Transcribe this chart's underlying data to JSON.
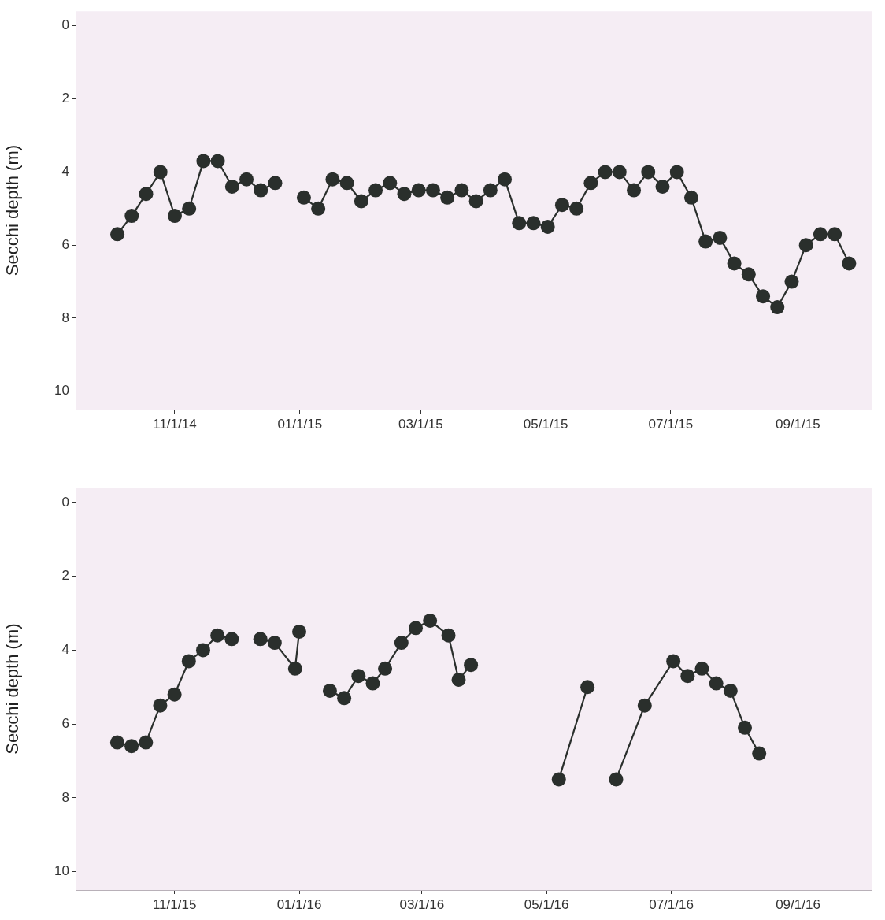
{
  "chart_data": [
    {
      "type": "line",
      "ylabel": "Secchi depth (m)",
      "marker": "circle",
      "legend": false,
      "xlim": [
        "2014-09-14",
        "2015-10-07"
      ],
      "ylim": [
        10.5,
        -0.4
      ],
      "yticks": [
        0,
        2,
        4,
        6,
        8,
        10
      ],
      "xticks": [
        {
          "value": "2014-11-01",
          "label": "11/1/14"
        },
        {
          "value": "2015-01-01",
          "label": "01/1/15"
        },
        {
          "value": "2015-03-01",
          "label": "03/1/15"
        },
        {
          "value": "2015-05-01",
          "label": "05/1/15"
        },
        {
          "value": "2015-07-01",
          "label": "07/1/15"
        },
        {
          "value": "2015-09-01",
          "label": "09/1/15"
        }
      ],
      "series": [
        {
          "color": "#2a2f2c",
          "x": [
            "2014-10-04",
            "2014-10-11",
            "2014-10-18",
            "2014-10-25",
            "2014-11-01",
            "2014-11-08",
            "2014-11-15",
            "2014-11-22",
            "2014-11-29",
            "2014-12-06",
            "2014-12-13",
            "2014-12-20",
            "2014-12-27",
            "2015-01-03",
            "2015-01-10",
            "2015-01-17",
            "2015-01-24",
            "2015-01-31",
            "2015-02-07",
            "2015-02-14",
            "2015-02-21",
            "2015-02-28",
            "2015-03-07",
            "2015-03-14",
            "2015-03-21",
            "2015-03-28",
            "2015-04-04",
            "2015-04-11",
            "2015-04-18",
            "2015-04-25",
            "2015-05-02",
            "2015-05-09",
            "2015-05-16",
            "2015-05-23",
            "2015-05-30",
            "2015-06-06",
            "2015-06-13",
            "2015-06-20",
            "2015-06-27",
            "2015-07-04",
            "2015-07-11",
            "2015-07-18",
            "2015-07-25",
            "2015-08-01",
            "2015-08-08",
            "2015-08-15",
            "2015-08-22",
            "2015-08-29",
            "2015-09-05",
            "2015-09-12",
            "2015-09-19",
            "2015-09-26"
          ],
          "values": [
            5.7,
            5.2,
            4.6,
            4.0,
            5.2,
            5.0,
            3.7,
            3.7,
            4.4,
            4.2,
            4.5,
            4.3,
            null,
            4.7,
            5.0,
            4.2,
            4.3,
            4.8,
            4.5,
            4.3,
            4.6,
            4.5,
            4.5,
            4.7,
            4.5,
            4.8,
            4.5,
            4.2,
            5.4,
            5.4,
            5.5,
            4.9,
            5.0,
            4.3,
            4.0,
            4.0,
            4.5,
            4.0,
            4.4,
            4.0,
            4.7,
            5.9,
            5.8,
            6.5,
            6.8,
            7.4,
            7.7,
            7.0,
            6.0,
            5.7,
            5.7,
            6.5
          ]
        }
      ]
    },
    {
      "type": "line",
      "ylabel": "Secchi depth (m)",
      "marker": "circle",
      "legend": false,
      "xlim": [
        "2015-09-14",
        "2016-10-07"
      ],
      "ylim": [
        10.5,
        -0.4
      ],
      "yticks": [
        0,
        2,
        4,
        6,
        8,
        10
      ],
      "xticks": [
        {
          "value": "2015-11-01",
          "label": "11/1/15"
        },
        {
          "value": "2016-01-01",
          "label": "01/1/16"
        },
        {
          "value": "2016-03-01",
          "label": "03/1/16"
        },
        {
          "value": "2016-05-01",
          "label": "05/1/16"
        },
        {
          "value": "2016-07-01",
          "label": "07/1/16"
        },
        {
          "value": "2016-09-01",
          "label": "09/1/16"
        }
      ],
      "series": [
        {
          "color": "#2a2f2c",
          "x": [
            "2015-10-04",
            "2015-10-11",
            "2015-10-18",
            "2015-10-25",
            "2015-11-01",
            "2015-11-08",
            "2015-11-15",
            "2015-11-22",
            "2015-11-29",
            "2015-12-06",
            "2015-12-13",
            "2015-12-20",
            "2015-12-30",
            "2016-01-01",
            "2016-01-08",
            "2016-01-16",
            "2016-01-23",
            "2016-01-30",
            "2016-02-06",
            "2016-02-12",
            "2016-02-20",
            "2016-02-27",
            "2016-03-05",
            "2016-03-14",
            "2016-03-19",
            "2016-03-25",
            "2016-04-15",
            "2016-05-07",
            "2016-05-21",
            "2016-05-28",
            "2016-06-04",
            "2016-06-18",
            "2016-07-02",
            "2016-07-09",
            "2016-07-16",
            "2016-07-23",
            "2016-07-30",
            "2016-08-06",
            "2016-08-13"
          ],
          "values": [
            6.5,
            6.6,
            6.5,
            5.5,
            5.2,
            4.3,
            4.0,
            3.6,
            3.7,
            null,
            3.7,
            3.8,
            4.5,
            3.5,
            null,
            5.1,
            5.3,
            4.7,
            4.9,
            4.5,
            3.8,
            3.4,
            3.2,
            3.6,
            4.8,
            4.4,
            null,
            7.5,
            5.0,
            null,
            7.5,
            5.5,
            4.3,
            4.7,
            4.5,
            4.9,
            5.1,
            6.1,
            6.8
          ]
        }
      ]
    }
  ]
}
